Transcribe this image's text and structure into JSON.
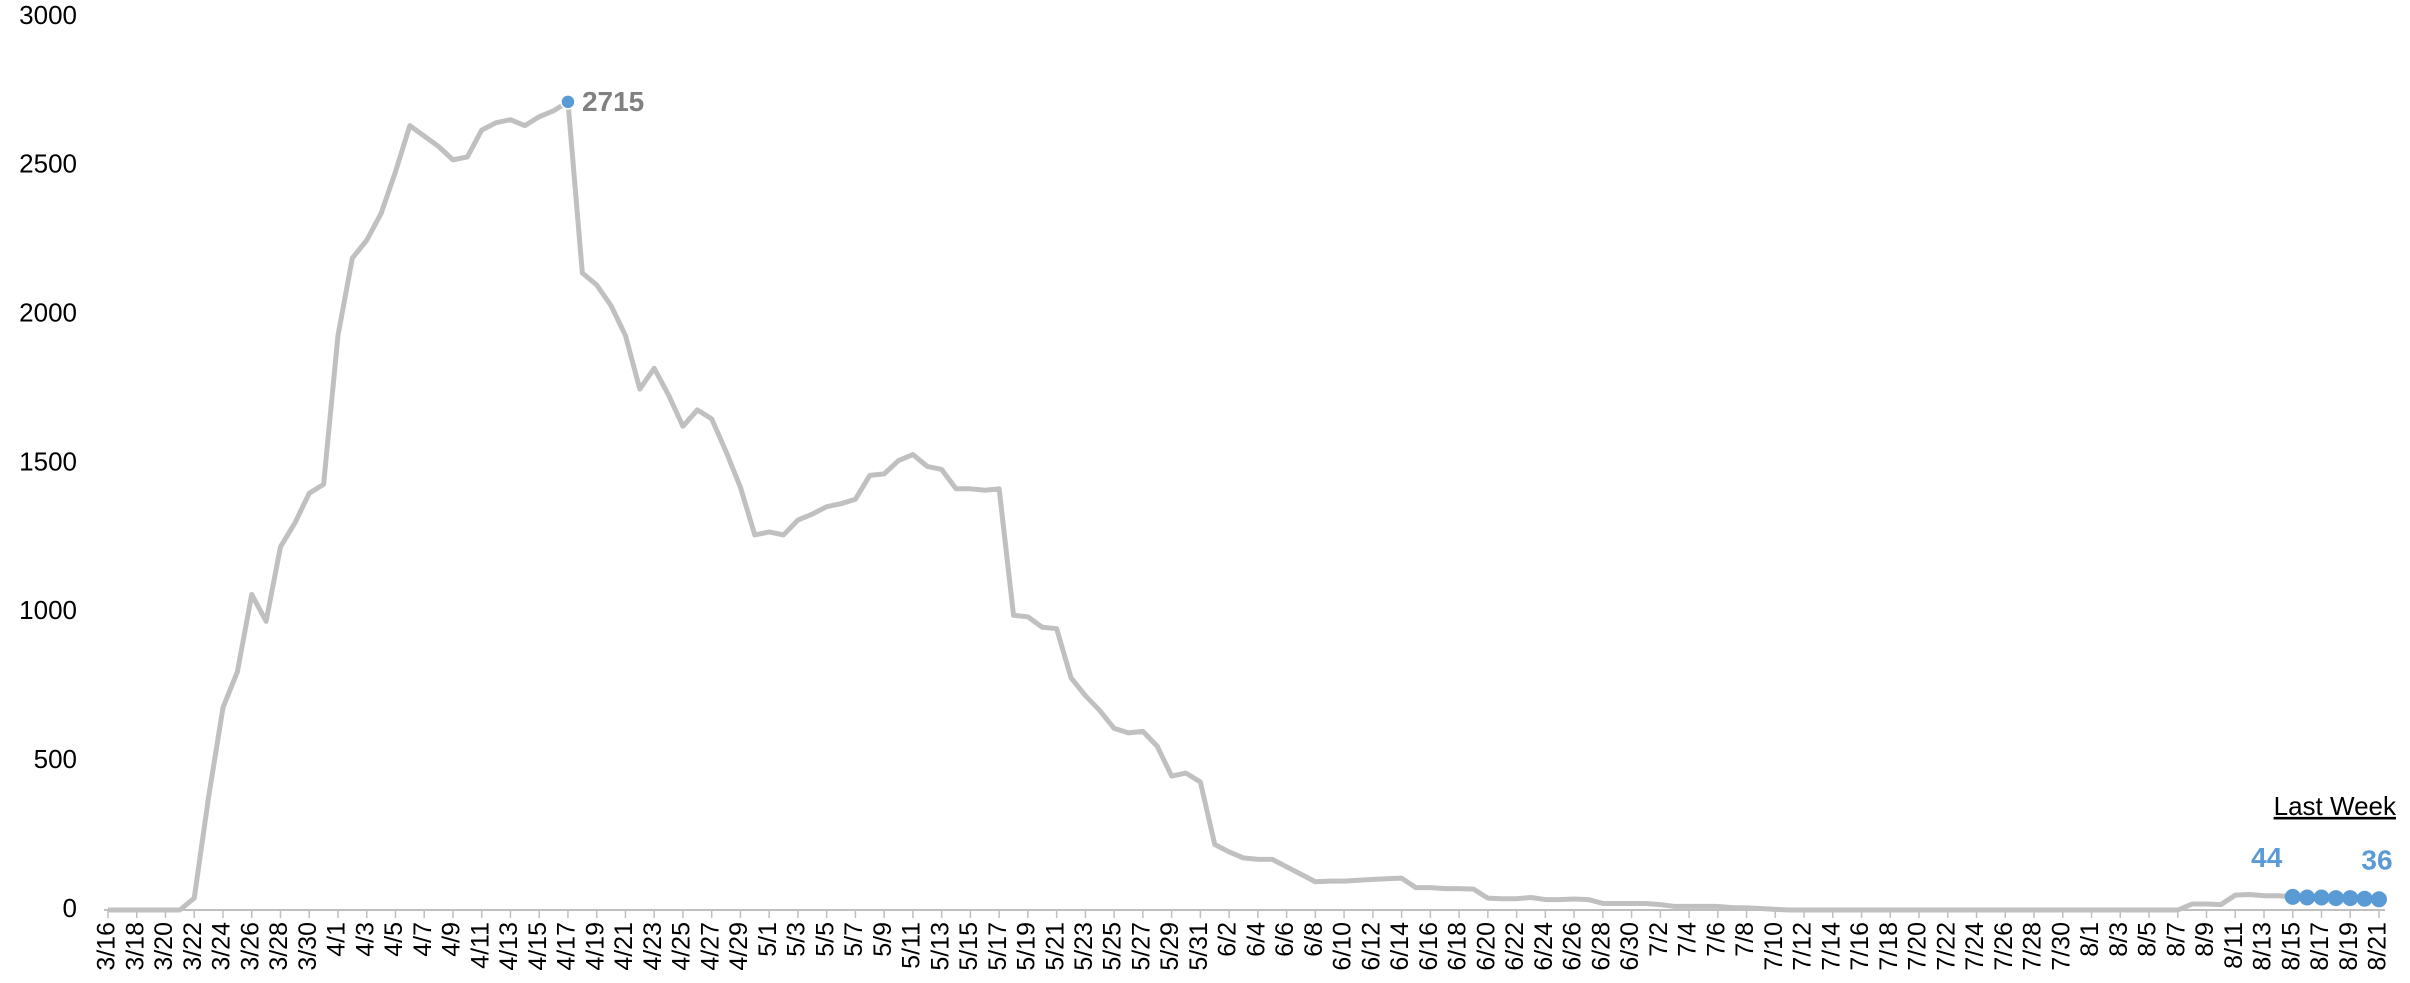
{
  "chart_data": {
    "type": "line",
    "categories": [
      "3/16",
      null,
      "3/18",
      null,
      "3/20",
      null,
      "3/22",
      null,
      "3/24",
      null,
      "3/26",
      null,
      "3/28",
      null,
      "3/30",
      null,
      "4/1",
      null,
      "4/3",
      null,
      "4/5",
      null,
      "4/7",
      null,
      "4/9",
      null,
      "4/11",
      null,
      "4/13",
      null,
      "4/15",
      null,
      "4/17",
      null,
      "4/19",
      null,
      "4/21",
      null,
      "4/23",
      null,
      "4/25",
      null,
      "4/27",
      null,
      "4/29",
      null,
      "5/1",
      null,
      "5/3",
      null,
      "5/5",
      null,
      "5/7",
      null,
      "5/9",
      null,
      "5/11",
      null,
      "5/13",
      null,
      "5/15",
      null,
      "5/17",
      null,
      "5/19",
      null,
      "5/21",
      null,
      "5/23",
      null,
      "5/25",
      null,
      "5/27",
      null,
      "5/29",
      null,
      "5/31",
      null,
      "6/2",
      null,
      "6/4",
      null,
      "6/6",
      null,
      "6/8",
      null,
      "6/10",
      null,
      "6/12",
      null,
      "6/14",
      null,
      "6/16",
      null,
      "6/18",
      null,
      "6/20",
      null,
      "6/22",
      null,
      "6/24",
      null,
      "6/26",
      null,
      "6/28",
      null,
      "6/30",
      null,
      "7/2",
      null,
      "7/4",
      null,
      "7/6",
      null,
      "7/8",
      null,
      "7/10",
      null,
      "7/12",
      null,
      "7/14",
      null,
      "7/16",
      null,
      "7/18",
      null,
      "7/20",
      null,
      "7/22",
      null,
      "7/24",
      null,
      "7/26",
      null,
      "7/28",
      null,
      "7/30",
      null,
      "8/1",
      null,
      "8/3",
      null,
      "8/5",
      null,
      "8/7",
      null,
      "8/9",
      null,
      "8/11",
      null,
      "8/13",
      null,
      "8/15",
      null,
      "8/17",
      null,
      "8/19",
      null,
      "8/21"
    ],
    "series": [
      {
        "color": "#c0c0c0",
        "values": [
          0,
          0,
          0,
          0,
          0,
          0,
          40,
          380,
          680,
          800,
          1060,
          970,
          1220,
          1300,
          1400,
          1430,
          1930,
          2190,
          2250,
          2340,
          2480,
          2635,
          2600,
          2565,
          2520,
          2530,
          2620,
          2645,
          2655,
          2635,
          2665,
          2685,
          2715,
          2140,
          2100,
          2030,
          1930,
          1750,
          1820,
          1730,
          1625,
          1680,
          1650,
          1540,
          1420,
          1260,
          1270,
          1260,
          1310,
          1330,
          1355,
          1365,
          1380,
          1460,
          1465,
          1510,
          1530,
          1490,
          1480,
          1415,
          1415,
          1410,
          1415,
          990,
          985,
          950,
          945,
          780,
          720,
          670,
          610,
          595,
          600,
          550,
          450,
          460,
          430,
          220,
          195,
          175,
          170,
          170,
          145,
          120,
          95,
          97,
          97,
          100,
          103,
          105,
          107,
          75,
          75,
          72,
          72,
          70,
          40,
          38,
          38,
          42,
          35,
          35,
          37,
          35,
          22,
          22,
          22,
          22,
          18,
          12,
          12,
          12,
          12,
          8,
          7,
          5,
          2,
          0,
          0,
          0,
          0,
          0,
          0,
          0,
          0,
          0,
          0,
          0,
          0,
          0,
          0,
          0,
          0,
          0,
          0,
          0,
          0,
          0,
          0,
          0,
          0,
          0,
          0,
          0,
          0,
          20,
          20,
          18,
          50,
          52,
          48,
          48,
          44,
          42,
          42,
          40,
          40,
          38,
          36
        ],
        "value_labels": [
          null,
          null,
          null,
          null,
          null,
          null,
          null,
          null,
          null,
          null,
          null,
          null,
          null,
          null,
          null,
          null,
          null,
          null,
          null,
          null,
          null,
          null,
          null,
          null,
          null,
          null,
          null,
          null,
          null,
          null,
          null,
          null,
          "2715",
          null,
          null,
          null,
          null,
          null,
          null,
          null,
          null,
          null,
          null,
          null,
          null,
          null,
          null,
          null,
          null,
          null,
          null,
          null,
          null,
          null,
          null,
          null,
          null,
          null,
          null,
          null,
          null,
          null,
          null,
          null,
          null,
          null,
          null,
          null,
          null,
          null,
          null,
          null,
          null,
          null,
          null,
          null,
          null,
          null,
          null,
          null,
          null,
          null,
          null,
          null,
          null,
          null,
          null,
          null,
          null,
          null,
          null,
          null,
          null,
          null,
          null,
          null,
          null,
          null,
          null,
          null,
          null,
          null,
          null,
          null,
          null,
          null,
          null,
          null,
          null,
          null,
          null,
          null,
          null,
          null,
          null,
          null,
          null,
          null,
          null,
          null,
          null,
          null,
          null,
          null,
          null,
          null,
          null,
          null,
          null,
          null,
          null,
          null,
          null,
          null,
          null,
          null,
          null,
          null,
          null,
          null,
          null,
          null,
          null,
          null,
          null,
          null,
          null,
          null,
          null,
          null,
          null,
          null,
          "44",
          null,
          null,
          null,
          null,
          null,
          "36"
        ]
      }
    ],
    "highlight": {
      "label": "Last Week",
      "from": "8/15",
      "color": "#5b9bd5"
    },
    "peak_color": "#5b9bd5",
    "label_color": "#808080",
    "ylim": [
      0,
      3000
    ],
    "yticks": [
      0,
      500,
      1000,
      1500,
      2000,
      2500,
      3000
    ],
    "grid": false
  }
}
